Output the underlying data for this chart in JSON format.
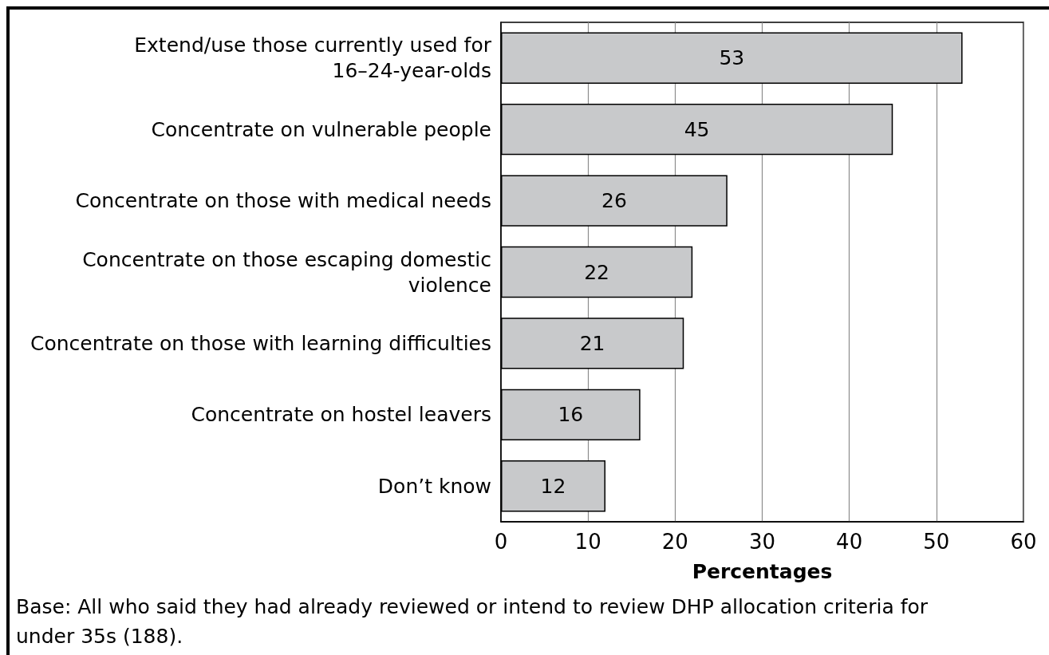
{
  "chart_data": {
    "type": "bar",
    "orientation": "horizontal",
    "categories": [
      "Extend/use those currently used for\n16–24-year-olds",
      "Concentrate on vulnerable people",
      "Concentrate on those with medical needs",
      "Concentrate on those escaping domestic\nviolence",
      "Concentrate on those with learning difficulties",
      "Concentrate on hostel leavers",
      "Don’t know"
    ],
    "values": [
      53,
      45,
      26,
      22,
      21,
      16,
      12
    ],
    "color": "#c8c9cb",
    "xlim": [
      0,
      60
    ],
    "xticks": [
      0,
      10,
      20,
      30,
      40,
      50,
      60
    ],
    "xlabel": "Percentages",
    "grid": "x",
    "data_labels": true,
    "annotations": [
      "Base: All who said they had already reviewed or intend to review DHP allocation criteria for under 35s (188)."
    ]
  }
}
